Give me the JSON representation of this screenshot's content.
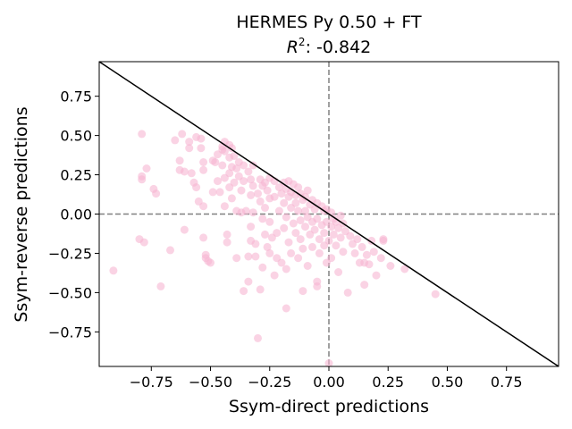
{
  "chart_data": {
    "type": "scatter",
    "title": "HERMES Py 0.50 + FT",
    "subtitle_prefix": "R",
    "subtitle_sup": "2",
    "subtitle_value": ": -0.842",
    "xlabel": "Ssym-direct predictions",
    "ylabel": "Ssym-reverse predictions",
    "xlim": [
      -0.97,
      0.97
    ],
    "ylim": [
      -0.97,
      0.97
    ],
    "xticks": [
      -0.75,
      -0.5,
      -0.25,
      0.0,
      0.25,
      0.5,
      0.75
    ],
    "yticks": [
      -0.75,
      -0.5,
      -0.25,
      0.0,
      0.25,
      0.5,
      0.75
    ],
    "xtick_labels": [
      "−0.75",
      "−0.50",
      "−0.25",
      "0.00",
      "0.25",
      "0.50",
      "0.75"
    ],
    "ytick_labels": [
      "−0.75",
      "−0.50",
      "−0.25",
      "0.00",
      "0.25",
      "0.50",
      "0.75"
    ],
    "grid": false,
    "point_color": "#f7b6d2",
    "point_opacity": 0.6,
    "reference_line": {
      "type": "y=-x",
      "color": "#000000"
    },
    "zero_lines": {
      "color": "#808080",
      "style": "dashed"
    },
    "points": [
      [
        -0.91,
        -0.36
      ],
      [
        -0.8,
        -0.16
      ],
      [
        -0.78,
        -0.18
      ],
      [
        -0.79,
        0.51
      ],
      [
        -0.79,
        0.24
      ],
      [
        -0.79,
        0.22
      ],
      [
        -0.77,
        0.29
      ],
      [
        -0.74,
        0.16
      ],
      [
        -0.73,
        0.13
      ],
      [
        -0.71,
        -0.46
      ],
      [
        -0.67,
        -0.23
      ],
      [
        -0.65,
        0.47
      ],
      [
        -0.63,
        0.34
      ],
      [
        -0.63,
        0.28
      ],
      [
        -0.62,
        0.51
      ],
      [
        -0.61,
        0.27
      ],
      [
        -0.61,
        -0.1
      ],
      [
        -0.59,
        0.46
      ],
      [
        -0.59,
        0.42
      ],
      [
        -0.58,
        0.26
      ],
      [
        -0.57,
        0.2
      ],
      [
        -0.56,
        0.49
      ],
      [
        -0.56,
        0.17
      ],
      [
        -0.55,
        0.08
      ],
      [
        -0.54,
        0.48
      ],
      [
        -0.54,
        0.42
      ],
      [
        -0.53,
        0.33
      ],
      [
        -0.53,
        0.28
      ],
      [
        -0.53,
        0.05
      ],
      [
        -0.53,
        -0.15
      ],
      [
        -0.52,
        -0.26
      ],
      [
        -0.52,
        -0.28
      ],
      [
        -0.51,
        -0.3
      ],
      [
        -0.5,
        -0.31
      ],
      [
        -0.49,
        0.34
      ],
      [
        -0.49,
        0.14
      ],
      [
        -0.48,
        0.33
      ],
      [
        -0.47,
        0.38
      ],
      [
        -0.47,
        0.21
      ],
      [
        -0.46,
        0.14
      ],
      [
        -0.45,
        0.43
      ],
      [
        -0.45,
        0.41
      ],
      [
        -0.45,
        0.31
      ],
      [
        -0.44,
        0.46
      ],
      [
        -0.44,
        0.4
      ],
      [
        -0.44,
        0.23
      ],
      [
        -0.44,
        0.05
      ],
      [
        -0.43,
        -0.13
      ],
      [
        -0.43,
        -0.18
      ],
      [
        -0.42,
        0.44
      ],
      [
        -0.42,
        0.36
      ],
      [
        -0.42,
        0.26
      ],
      [
        -0.42,
        0.17
      ],
      [
        -0.41,
        0.42
      ],
      [
        -0.41,
        0.3
      ],
      [
        -0.41,
        0.1
      ],
      [
        -0.4,
        0.37
      ],
      [
        -0.4,
        0.2
      ],
      [
        -0.39,
        0.29
      ],
      [
        -0.39,
        0.02
      ],
      [
        -0.39,
        -0.28
      ],
      [
        -0.38,
        0.33
      ],
      [
        -0.38,
        0.24
      ],
      [
        -0.37,
        0.15
      ],
      [
        -0.37,
        0.01
      ],
      [
        -0.36,
        0.31
      ],
      [
        -0.36,
        0.21
      ],
      [
        -0.36,
        -0.49
      ],
      [
        -0.35,
        0.02
      ],
      [
        -0.34,
        0.27
      ],
      [
        -0.34,
        -0.27
      ],
      [
        -0.34,
        -0.43
      ],
      [
        -0.33,
        0.22
      ],
      [
        -0.33,
        0.12
      ],
      [
        -0.33,
        -0.08
      ],
      [
        -0.33,
        -0.17
      ],
      [
        -0.32,
        0.31
      ],
      [
        -0.32,
        0.18
      ],
      [
        -0.32,
        0.01
      ],
      [
        -0.31,
        -0.19
      ],
      [
        -0.31,
        -0.27
      ],
      [
        -0.3,
        0.13
      ],
      [
        -0.3,
        -0.79
      ],
      [
        -0.29,
        0.22
      ],
      [
        -0.29,
        0.08
      ],
      [
        -0.29,
        -0.48
      ],
      [
        -0.28,
        0.18
      ],
      [
        -0.28,
        -0.03
      ],
      [
        -0.28,
        -0.34
      ],
      [
        -0.27,
        0.2
      ],
      [
        -0.27,
        0.04
      ],
      [
        -0.27,
        -0.13
      ],
      [
        -0.26,
        0.15
      ],
      [
        -0.26,
        -0.21
      ],
      [
        -0.25,
        0.23
      ],
      [
        -0.25,
        0.1
      ],
      [
        -0.25,
        -0.05
      ],
      [
        -0.25,
        -0.25
      ],
      [
        -0.24,
        -0.15
      ],
      [
        -0.23,
        0.21
      ],
      [
        -0.23,
        0.11
      ],
      [
        -0.23,
        -0.39
      ],
      [
        -0.22,
        -0.12
      ],
      [
        -0.22,
        -0.28
      ],
      [
        -0.21,
        0.17
      ],
      [
        -0.21,
        0.02
      ],
      [
        -0.2,
        0.13
      ],
      [
        -0.2,
        -0.31
      ],
      [
        -0.19,
        0.2
      ],
      [
        -0.19,
        0.07
      ],
      [
        -0.19,
        -0.09
      ],
      [
        -0.18,
        0.16
      ],
      [
        -0.18,
        -0.02
      ],
      [
        -0.18,
        -0.35
      ],
      [
        -0.18,
        -0.6
      ],
      [
        -0.17,
        0.21
      ],
      [
        -0.17,
        0.11
      ],
      [
        -0.17,
        -0.18
      ],
      [
        -0.16,
        0.14
      ],
      [
        -0.16,
        0.04
      ],
      [
        -0.16,
        -0.25
      ],
      [
        -0.15,
        0.19
      ],
      [
        -0.15,
        -0.06
      ],
      [
        -0.14,
        0.12
      ],
      [
        -0.14,
        0.07
      ],
      [
        -0.14,
        -0.12
      ],
      [
        -0.13,
        0.17
      ],
      [
        -0.13,
        0.02
      ],
      [
        -0.13,
        -0.28
      ],
      [
        -0.12,
        0.13
      ],
      [
        -0.12,
        -0.04
      ],
      [
        -0.12,
        -0.16
      ],
      [
        -0.11,
        0.09
      ],
      [
        -0.11,
        -0.22
      ],
      [
        -0.11,
        -0.49
      ],
      [
        -0.1,
        0.11
      ],
      [
        -0.1,
        0.02
      ],
      [
        -0.1,
        -0.08
      ],
      [
        -0.09,
        0.15
      ],
      [
        -0.09,
        -0.02
      ],
      [
        -0.09,
        -0.33
      ],
      [
        -0.08,
        0.06
      ],
      [
        -0.08,
        -0.13
      ],
      [
        -0.07,
        0.09
      ],
      [
        -0.07,
        -0.05
      ],
      [
        -0.07,
        -0.21
      ],
      [
        -0.06,
        0.03
      ],
      [
        -0.06,
        -0.1
      ],
      [
        -0.05,
        0.07
      ],
      [
        -0.05,
        -0.03
      ],
      [
        -0.05,
        -0.43
      ],
      [
        -0.05,
        -0.46
      ],
      [
        -0.04,
        -0.16
      ],
      [
        -0.04,
        -0.25
      ],
      [
        -0.03,
        0.05
      ],
      [
        -0.03,
        -0.07
      ],
      [
        -0.02,
        0.02
      ],
      [
        -0.02,
        -0.12
      ],
      [
        -0.02,
        -0.2
      ],
      [
        -0.01,
        0.03
      ],
      [
        -0.01,
        -0.05
      ],
      [
        -0.01,
        -0.31
      ],
      [
        0.0,
        -0.17
      ],
      [
        0.0,
        -0.95
      ],
      [
        0.01,
        0.01
      ],
      [
        0.01,
        -0.08
      ],
      [
        0.01,
        -0.28
      ],
      [
        0.02,
        -0.03
      ],
      [
        0.02,
        -0.13
      ],
      [
        0.03,
        -0.05
      ],
      [
        0.03,
        -0.2
      ],
      [
        0.04,
        -0.09
      ],
      [
        0.04,
        -0.37
      ],
      [
        0.05,
        -0.01
      ],
      [
        0.05,
        -0.15
      ],
      [
        0.06,
        -0.06
      ],
      [
        0.06,
        -0.24
      ],
      [
        0.07,
        -0.11
      ],
      [
        0.08,
        -0.5
      ],
      [
        0.09,
        -0.14
      ],
      [
        0.1,
        -0.19
      ],
      [
        0.11,
        -0.25
      ],
      [
        0.12,
        -0.16
      ],
      [
        0.13,
        -0.31
      ],
      [
        0.14,
        -0.21
      ],
      [
        0.15,
        -0.31
      ],
      [
        0.15,
        -0.45
      ],
      [
        0.16,
        -0.26
      ],
      [
        0.17,
        -0.32
      ],
      [
        0.18,
        -0.17
      ],
      [
        0.19,
        -0.24
      ],
      [
        0.2,
        -0.39
      ],
      [
        0.22,
        -0.28
      ],
      [
        0.23,
        -0.16
      ],
      [
        0.23,
        -0.17
      ],
      [
        0.26,
        -0.33
      ],
      [
        0.32,
        -0.35
      ],
      [
        0.45,
        -0.51
      ]
    ]
  }
}
